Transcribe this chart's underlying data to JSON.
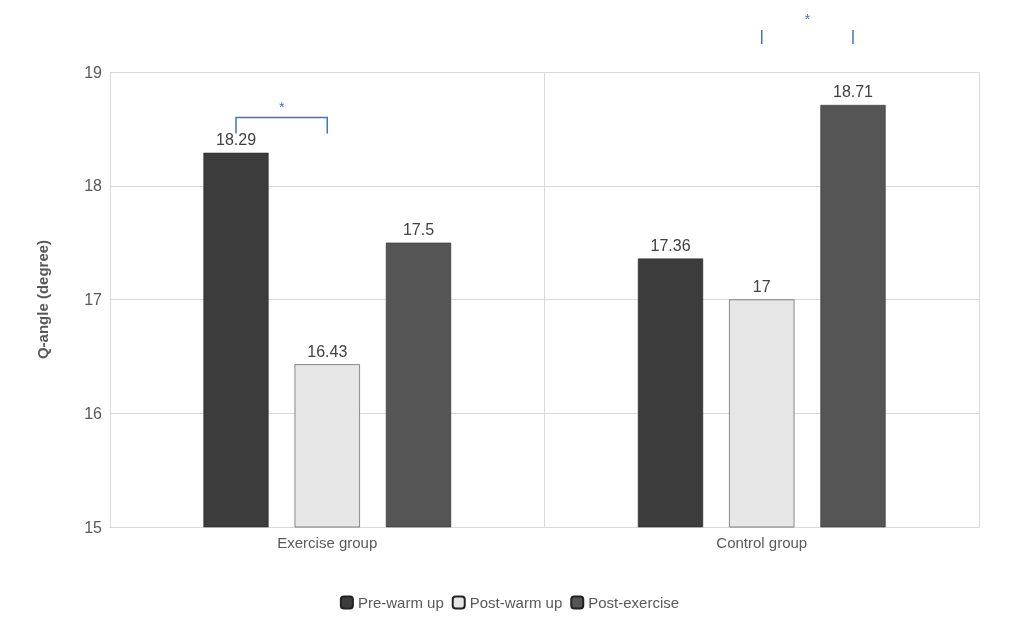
{
  "chart_data": {
    "type": "bar",
    "ylabel": "Q-angle (degree)",
    "categories": [
      "Exercise group",
      "Control group"
    ],
    "series": [
      {
        "name": "Pre-warm up",
        "color": "#3c3c3c",
        "values": [
          18.29,
          17.36
        ]
      },
      {
        "name": "Post-warm up",
        "color": "#e6e6e6",
        "values": [
          16.43,
          17
        ]
      },
      {
        "name": "Post-exercise",
        "color": "#555555",
        "values": [
          17.5,
          18.71
        ]
      }
    ],
    "ylim": [
      15,
      19
    ],
    "yticks": [
      15,
      16,
      17,
      18,
      19
    ],
    "grid": true,
    "legend": "bottom",
    "data_labels": true,
    "annotations": [
      "*",
      "*"
    ]
  }
}
